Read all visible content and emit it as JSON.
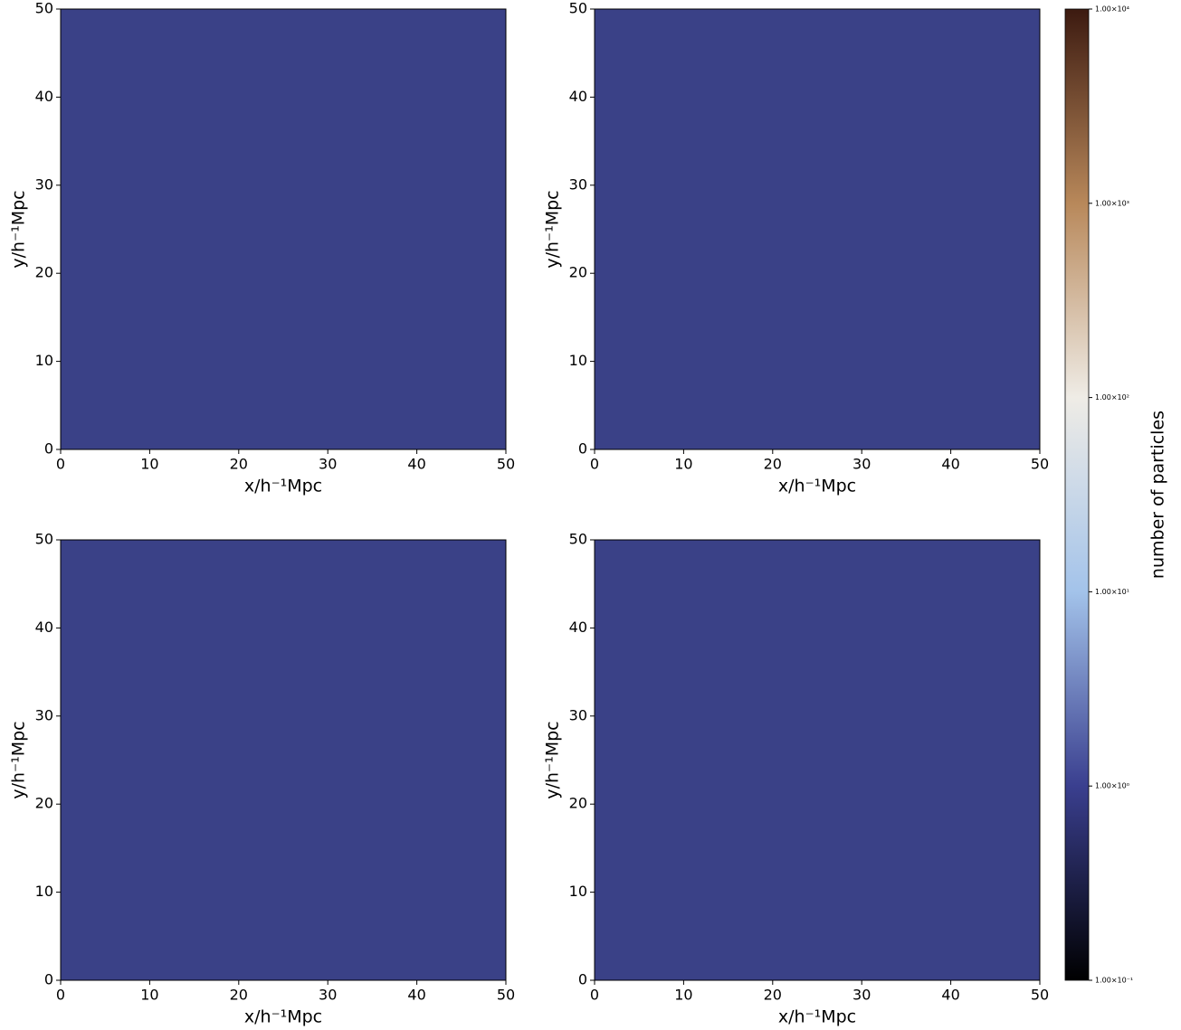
{
  "chart_data": [
    {
      "type": "heatmap",
      "background": "#3a4187",
      "xlabel": "x/h⁻¹Mpc",
      "ylabel": "y/h⁻¹Mpc",
      "xlim": [
        0,
        50
      ],
      "ylim": [
        0,
        50
      ],
      "xticks": [
        0,
        10,
        20,
        30,
        40,
        50
      ],
      "yticks": [
        0,
        10,
        20,
        30,
        40,
        50
      ]
    },
    {
      "type": "heatmap",
      "background": "#3a4187",
      "xlabel": "x/h⁻¹Mpc",
      "ylabel": "y/h⁻¹Mpc",
      "xlim": [
        0,
        50
      ],
      "ylim": [
        0,
        50
      ],
      "xticks": [
        0,
        10,
        20,
        30,
        40,
        50
      ],
      "yticks": [
        0,
        10,
        20,
        30,
        40,
        50
      ]
    },
    {
      "type": "heatmap",
      "background": "#3a4187",
      "xlabel": "x/h⁻¹Mpc",
      "ylabel": "y/h⁻¹Mpc",
      "xlim": [
        0,
        50
      ],
      "ylim": [
        0,
        50
      ],
      "xticks": [
        0,
        10,
        20,
        30,
        40,
        50
      ],
      "yticks": [
        0,
        10,
        20,
        30,
        40,
        50
      ]
    },
    {
      "type": "heatmap",
      "background": "#3a4187",
      "xlabel": "x/h⁻¹Mpc",
      "ylabel": "y/h⁻¹Mpc",
      "xlim": [
        0,
        50
      ],
      "ylim": [
        0,
        50
      ],
      "xticks": [
        0,
        10,
        20,
        30,
        40,
        50
      ],
      "yticks": [
        0,
        10,
        20,
        30,
        40,
        50
      ]
    },
    {
      "type": "colorbar",
      "label": "number of particles",
      "log_scale": true,
      "ylim": [
        0.1,
        10000
      ],
      "colors": [
        "#000000",
        "#3a3f8f",
        "#a3c3ea",
        "#efece6",
        "#b8885a",
        "#3c1a10"
      ],
      "yticks": [
        {
          "value": 0.1,
          "label": "1.00×10⁻¹"
        },
        {
          "value": 1,
          "label": "1.00×10⁰"
        },
        {
          "value": 10,
          "label": "1.00×10¹"
        },
        {
          "value": 100,
          "label": "1.00×10²"
        },
        {
          "value": 1000,
          "label": "1.00×10³"
        },
        {
          "value": 10000,
          "label": "1.00×10⁴"
        }
      ]
    }
  ]
}
